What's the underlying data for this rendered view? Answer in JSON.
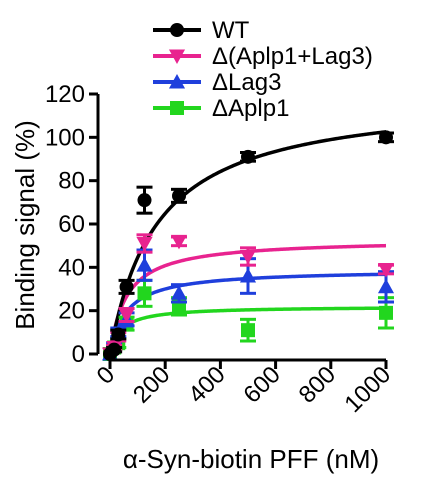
{
  "chart_data": {
    "type": "scatter",
    "title": "",
    "xlabel": "α-Syn-biotin PFF (nM)",
    "ylabel": "Binding signal (%)",
    "xlim": [
      0,
      1000
    ],
    "ylim": [
      0,
      120
    ],
    "x_ticks": [
      0,
      200,
      400,
      600,
      800,
      1000
    ],
    "y_ticks": [
      0,
      20,
      40,
      60,
      80,
      100,
      120
    ],
    "grid": false,
    "legend_position": "top-right",
    "fit": "one-site specific binding (hyperbolic curve through each series)",
    "series": [
      {
        "name": "WT",
        "color": "#000000",
        "marker": "circle",
        "x": [
          0,
          15,
          30,
          60,
          125,
          250,
          500,
          1000
        ],
        "y": [
          0,
          2,
          9,
          31,
          71,
          73,
          91,
          100
        ],
        "error": [
          0,
          1,
          2,
          3,
          6,
          3,
          2,
          2
        ],
        "fit_params": {
          "Bmax": 120,
          "Kd": 170
        }
      },
      {
        "name": "Δ(Aplp1+Lag3)",
        "color": "#e8238f",
        "marker": "triangle-down",
        "x": [
          0,
          15,
          30,
          60,
          125,
          250,
          500,
          1000
        ],
        "y": [
          0,
          3,
          8,
          18,
          51,
          52,
          45,
          39
        ],
        "error": [
          0,
          1,
          2,
          3,
          4,
          2,
          4,
          2
        ],
        "fit_params": {
          "Bmax": 53,
          "Kd": 60
        }
      },
      {
        "name": "ΔLag3",
        "color": "#1f3fdc",
        "marker": "triangle-up",
        "x": [
          0,
          15,
          30,
          60,
          125,
          250,
          500,
          1000
        ],
        "y": [
          0,
          4,
          10,
          16,
          41,
          28,
          36,
          31
        ],
        "error": [
          0,
          1,
          2,
          3,
          7,
          4,
          8,
          7
        ],
        "fit_params": {
          "Bmax": 39,
          "Kd": 60
        }
      },
      {
        "name": "ΔAplp1",
        "color": "#22d61e",
        "marker": "square",
        "x": [
          0,
          15,
          30,
          60,
          125,
          250,
          500,
          1000
        ],
        "y": [
          0,
          3,
          5,
          14,
          28,
          22,
          11,
          19
        ],
        "error": [
          0,
          1,
          2,
          3,
          6,
          4,
          5,
          7
        ],
        "fit_params": {
          "Bmax": 22,
          "Kd": 40
        }
      }
    ]
  }
}
